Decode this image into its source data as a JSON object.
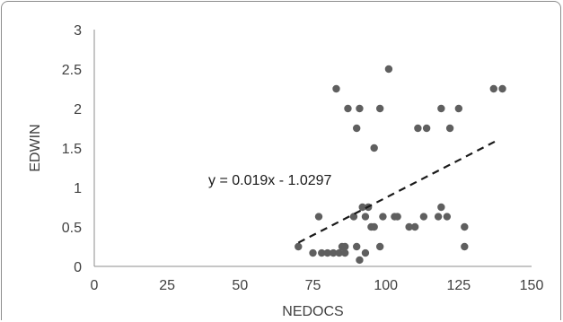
{
  "chart_data": {
    "type": "scatter",
    "title": "",
    "xlabel": "NEDOCS",
    "ylabel": "EDWIN",
    "xlim": [
      0,
      150
    ],
    "ylim": [
      0,
      3
    ],
    "xticks": [
      "0",
      "25",
      "50",
      "75",
      "100",
      "125",
      "150"
    ],
    "yticks": [
      "0",
      "0.5",
      "1",
      "1.5",
      "2",
      "2.5",
      "3"
    ],
    "grid": false,
    "legend": "none",
    "marker_color": "#5f5f5f",
    "trendline_color": "#1a1a1a",
    "series": [
      {
        "points": [
          [
            70,
            0.25
          ],
          [
            75,
            0.17
          ],
          [
            77,
            0.63
          ],
          [
            78,
            0.17
          ],
          [
            80,
            0.17
          ],
          [
            82,
            0.17
          ],
          [
            83,
            2.25
          ],
          [
            84,
            0.17
          ],
          [
            85,
            0.25
          ],
          [
            86,
            0.17
          ],
          [
            86,
            0.25
          ],
          [
            87,
            2.0
          ],
          [
            89,
            0.63
          ],
          [
            90,
            1.75
          ],
          [
            90,
            0.25
          ],
          [
            91,
            2.0
          ],
          [
            91,
            0.08
          ],
          [
            92,
            0.75
          ],
          [
            93,
            0.17
          ],
          [
            93,
            0.63
          ],
          [
            94,
            0.75
          ],
          [
            95,
            0.5
          ],
          [
            96,
            1.5
          ],
          [
            96,
            0.5
          ],
          [
            98,
            2.0
          ],
          [
            98,
            0.25
          ],
          [
            99,
            0.63
          ],
          [
            101,
            2.5
          ],
          [
            103,
            0.63
          ],
          [
            104,
            0.63
          ],
          [
            108,
            0.5
          ],
          [
            110,
            0.5
          ],
          [
            111,
            1.75
          ],
          [
            113,
            0.63
          ],
          [
            114,
            1.75
          ],
          [
            118,
            0.63
          ],
          [
            119,
            2.0
          ],
          [
            119,
            0.75
          ],
          [
            121,
            0.63
          ],
          [
            122,
            1.75
          ],
          [
            125,
            2.0
          ],
          [
            127,
            0.5
          ],
          [
            127,
            0.25
          ],
          [
            137,
            2.25
          ],
          [
            140,
            2.25
          ]
        ]
      }
    ],
    "trendline": {
      "equation": "y = 0.019x - 1.0297",
      "slope": 0.019,
      "intercept": -1.0297,
      "x_range": [
        70,
        139
      ]
    }
  }
}
